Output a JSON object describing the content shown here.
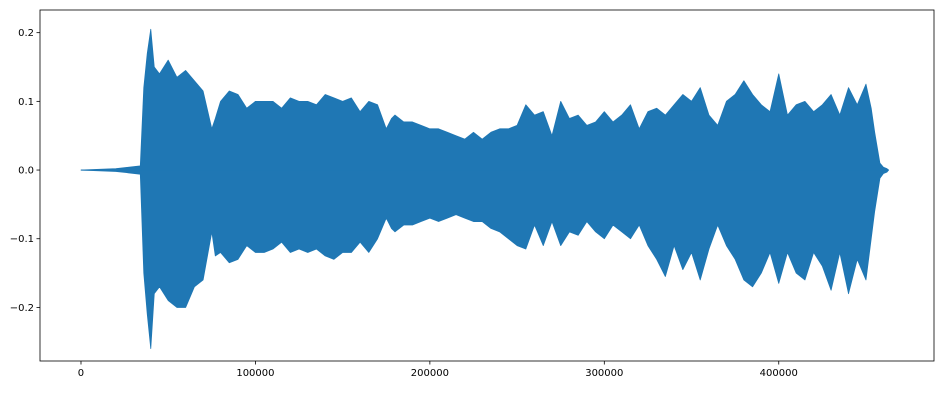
{
  "chart_data": {
    "type": "line",
    "title": "",
    "xlabel": "",
    "ylabel": "",
    "xlim": [
      -23500,
      489000
    ],
    "ylim": [
      -0.278,
      0.233
    ],
    "xticks": [
      0,
      100000,
      200000,
      300000,
      400000
    ],
    "xtick_labels": [
      "0",
      "100000",
      "200000",
      "300000",
      "400000"
    ],
    "yticks": [
      -0.2,
      -0.1,
      0.0,
      0.1,
      0.2
    ],
    "ytick_labels": [
      "−0.2",
      "−0.1",
      "0.0",
      "0.1",
      "0.2"
    ],
    "grid": false,
    "series": [
      {
        "color": "#1f77b4",
        "envelope": {
          "x": [
            0,
            20000,
            34000,
            36000,
            38000,
            40000,
            42000,
            45000,
            50000,
            55000,
            60000,
            65000,
            70000,
            75000,
            77000,
            80000,
            85000,
            90000,
            95000,
            100000,
            105000,
            110000,
            115000,
            120000,
            125000,
            130000,
            135000,
            140000,
            145000,
            150000,
            155000,
            160000,
            165000,
            170000,
            175000,
            178000,
            180000,
            185000,
            190000,
            195000,
            200000,
            205000,
            210000,
            215000,
            220000,
            225000,
            230000,
            235000,
            240000,
            245000,
            250000,
            255000,
            260000,
            265000,
            270000,
            275000,
            280000,
            285000,
            290000,
            295000,
            300000,
            305000,
            310000,
            315000,
            320000,
            325000,
            330000,
            335000,
            340000,
            345000,
            350000,
            355000,
            360000,
            365000,
            370000,
            375000,
            380000,
            385000,
            390000,
            395000,
            400000,
            405000,
            410000,
            415000,
            420000,
            425000,
            430000,
            435000,
            440000,
            445000,
            450000,
            453000,
            455000,
            458000,
            460000,
            462000,
            463000
          ],
          "upper": [
            0.0,
            0.002,
            0.006,
            0.12,
            0.17,
            0.205,
            0.15,
            0.14,
            0.16,
            0.135,
            0.145,
            0.13,
            0.115,
            0.06,
            0.075,
            0.1,
            0.115,
            0.11,
            0.09,
            0.1,
            0.1,
            0.1,
            0.09,
            0.105,
            0.1,
            0.1,
            0.095,
            0.11,
            0.105,
            0.1,
            0.105,
            0.085,
            0.1,
            0.095,
            0.06,
            0.075,
            0.08,
            0.07,
            0.07,
            0.065,
            0.06,
            0.06,
            0.055,
            0.05,
            0.045,
            0.055,
            0.045,
            0.055,
            0.06,
            0.06,
            0.065,
            0.095,
            0.08,
            0.085,
            0.05,
            0.1,
            0.075,
            0.08,
            0.065,
            0.07,
            0.085,
            0.07,
            0.08,
            0.095,
            0.06,
            0.085,
            0.09,
            0.08,
            0.095,
            0.11,
            0.1,
            0.12,
            0.08,
            0.065,
            0.1,
            0.11,
            0.13,
            0.11,
            0.095,
            0.085,
            0.14,
            0.08,
            0.095,
            0.1,
            0.085,
            0.095,
            0.11,
            0.08,
            0.12,
            0.095,
            0.125,
            0.09,
            0.055,
            0.01,
            0.004,
            0.002,
            0.0
          ],
          "lower": [
            0.0,
            -0.002,
            -0.006,
            -0.15,
            -0.21,
            -0.26,
            -0.18,
            -0.17,
            -0.19,
            -0.2,
            -0.2,
            -0.17,
            -0.16,
            -0.09,
            -0.125,
            -0.12,
            -0.135,
            -0.13,
            -0.11,
            -0.12,
            -0.12,
            -0.115,
            -0.105,
            -0.12,
            -0.115,
            -0.12,
            -0.115,
            -0.125,
            -0.13,
            -0.12,
            -0.12,
            -0.105,
            -0.12,
            -0.1,
            -0.07,
            -0.085,
            -0.09,
            -0.08,
            -0.08,
            -0.075,
            -0.07,
            -0.075,
            -0.07,
            -0.065,
            -0.07,
            -0.075,
            -0.075,
            -0.085,
            -0.09,
            -0.1,
            -0.11,
            -0.115,
            -0.08,
            -0.11,
            -0.075,
            -0.11,
            -0.09,
            -0.095,
            -0.075,
            -0.09,
            -0.1,
            -0.08,
            -0.09,
            -0.1,
            -0.08,
            -0.11,
            -0.13,
            -0.155,
            -0.11,
            -0.145,
            -0.12,
            -0.16,
            -0.115,
            -0.08,
            -0.11,
            -0.13,
            -0.16,
            -0.17,
            -0.15,
            -0.12,
            -0.165,
            -0.12,
            -0.15,
            -0.16,
            -0.12,
            -0.14,
            -0.175,
            -0.12,
            -0.18,
            -0.13,
            -0.16,
            -0.1,
            -0.06,
            -0.012,
            -0.005,
            -0.003,
            0.0
          ]
        }
      }
    ]
  }
}
